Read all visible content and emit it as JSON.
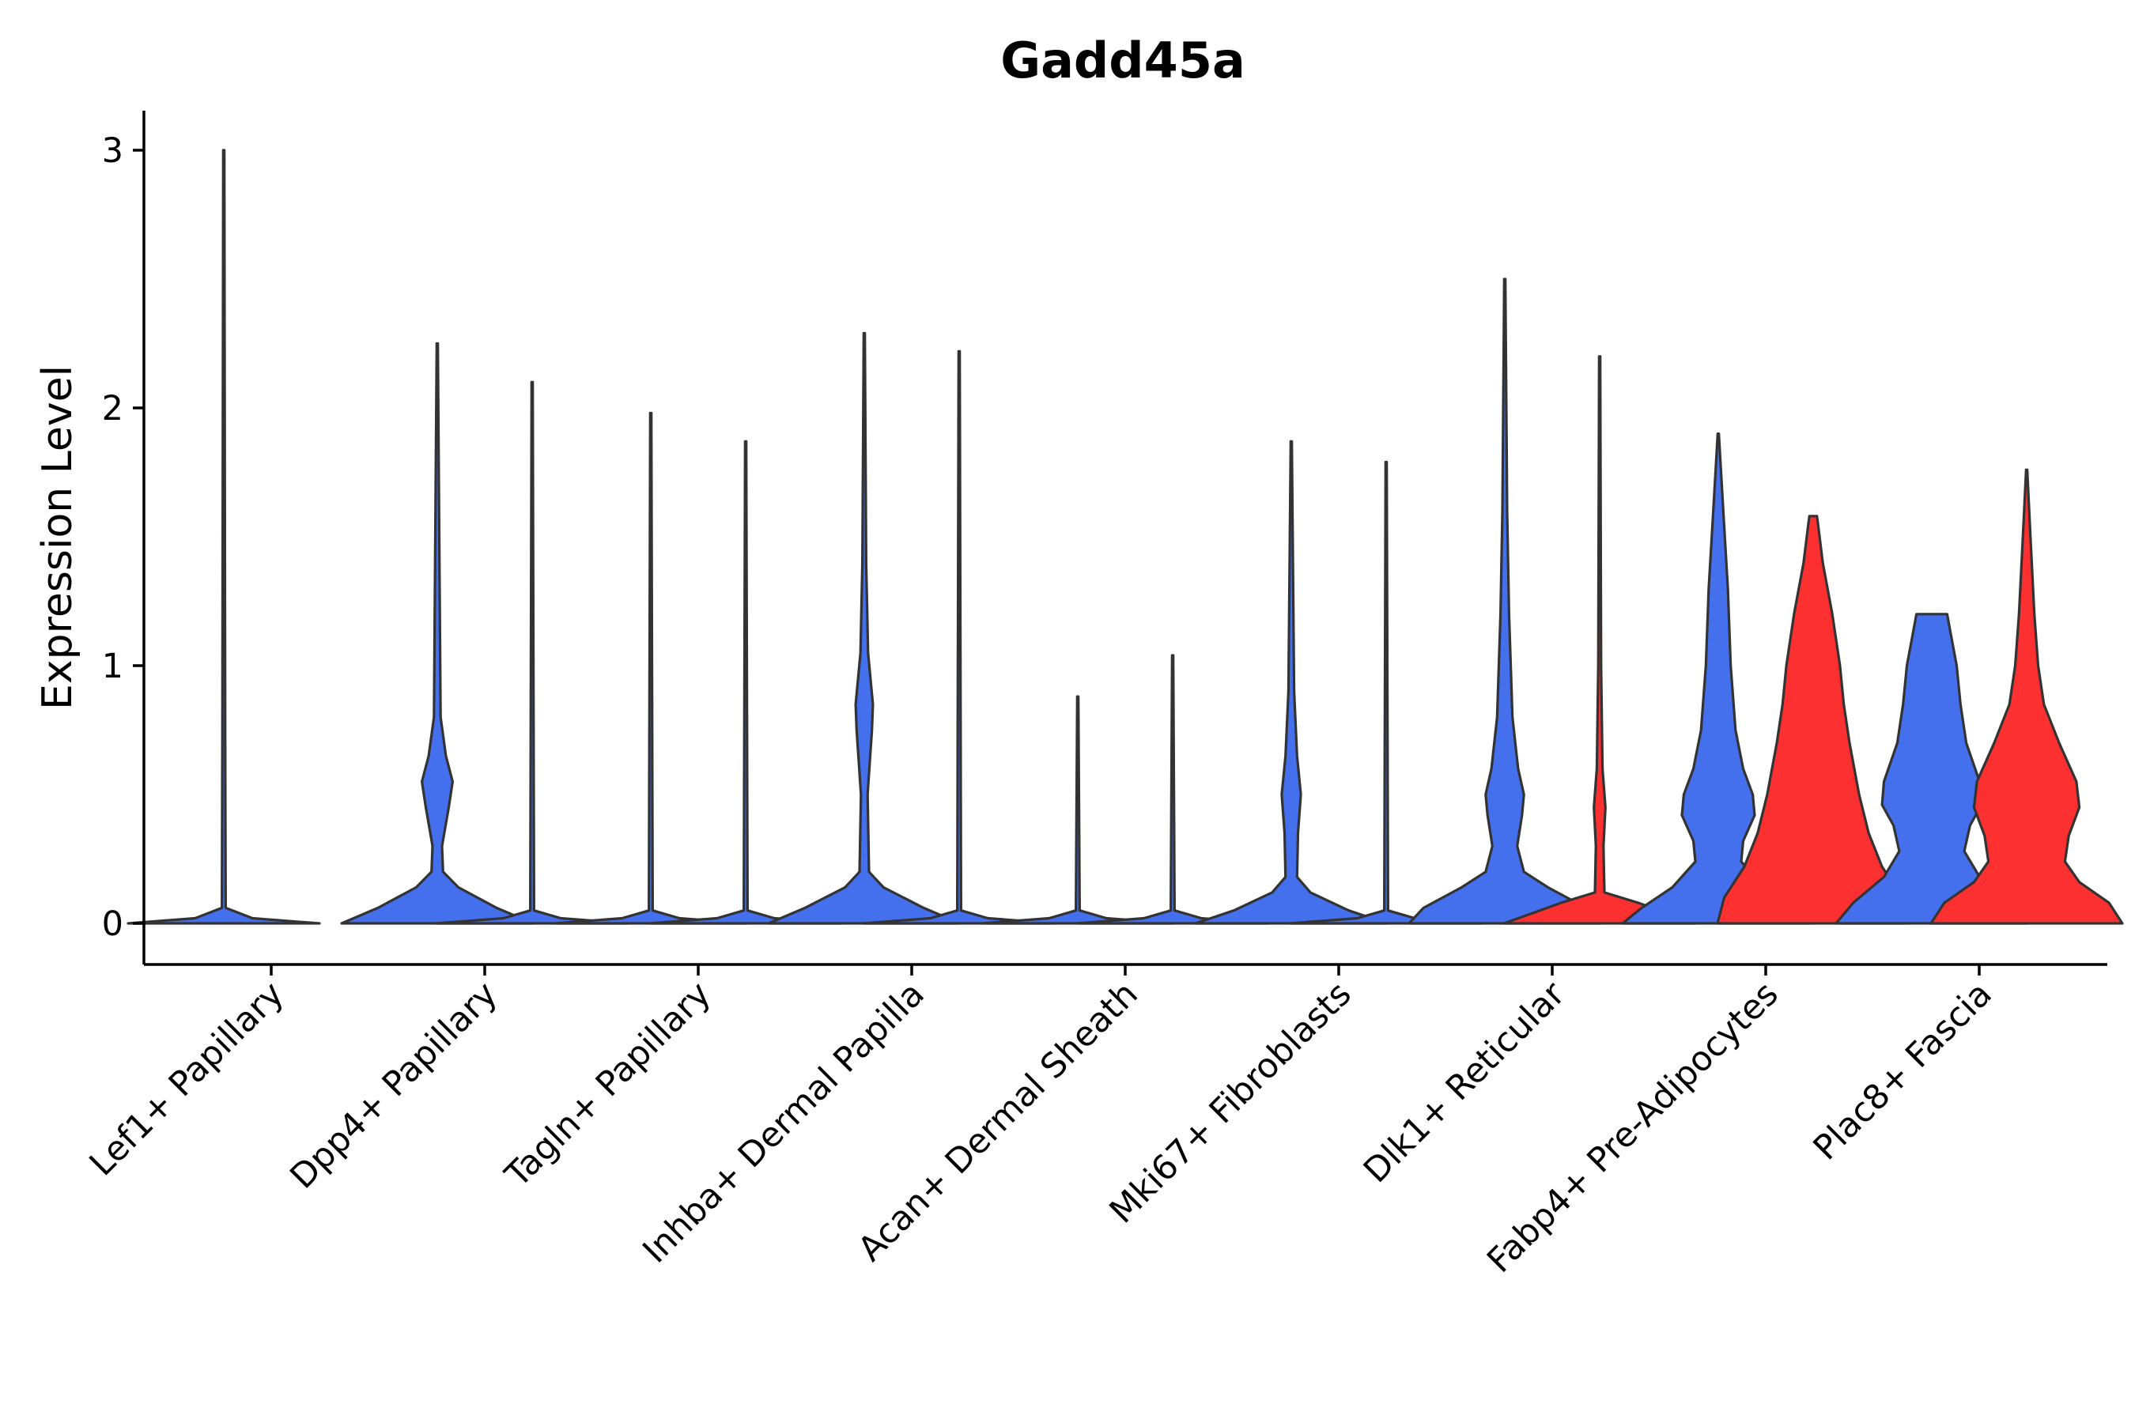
{
  "chart_data": {
    "type": "violin",
    "title": "Gadd45a",
    "xlabel": "",
    "ylabel": "Expression Level",
    "ylim": [
      -0.15,
      3.15
    ],
    "yticks": [
      0,
      1,
      2,
      3
    ],
    "grid": false,
    "legend": "none",
    "colors": {
      "blue": "#4570ED",
      "red": "#FC3030",
      "outline": "#333333"
    },
    "categories": [
      "Lef1+ Papillary",
      "Dpp4+ Papillary",
      "Tagln+ Papillary",
      "Inhba+ Dermal Papilla",
      "Acan+ Dermal Sheath",
      "Mki67+ Fibroblasts",
      "Dlk1+ Reticular",
      "Fabp4+ Pre-Adipocytes",
      "Plac8+ Fascia"
    ],
    "violins": [
      {
        "category": "Lef1+ Papillary",
        "group": 1,
        "fill": "blue",
        "max": 3.0,
        "density": [
          [
            0,
            1.0
          ],
          [
            0.02,
            0.3
          ],
          [
            0.06,
            0.02
          ],
          [
            0.7,
            0.015
          ],
          [
            3.0,
            0.006
          ]
        ]
      },
      {
        "category": "Lef1+ Papillary",
        "group": 2,
        "fill": "none",
        "max": 0.0,
        "density": [
          [
            0,
            0.0
          ]
        ]
      },
      {
        "category": "Dpp4+ Papillary",
        "group": 1,
        "fill": "blue",
        "max": 2.25,
        "density": [
          [
            0,
            1.0
          ],
          [
            0.06,
            0.62
          ],
          [
            0.14,
            0.22
          ],
          [
            0.2,
            0.06
          ],
          [
            0.3,
            0.05
          ],
          [
            0.45,
            0.12
          ],
          [
            0.55,
            0.16
          ],
          [
            0.65,
            0.09
          ],
          [
            0.8,
            0.035
          ],
          [
            1.3,
            0.025
          ],
          [
            2.25,
            0.006
          ]
        ]
      },
      {
        "category": "Dpp4+ Papillary",
        "group": 2,
        "fill": "blue",
        "max": 2.1,
        "density": [
          [
            0,
            1.0
          ],
          [
            0.02,
            0.3
          ],
          [
            0.05,
            0.02
          ],
          [
            2.1,
            0.006
          ]
        ]
      },
      {
        "category": "Tagln+ Papillary",
        "group": 1,
        "fill": "blue",
        "max": 1.98,
        "density": [
          [
            0,
            1.0
          ],
          [
            0.02,
            0.3
          ],
          [
            0.05,
            0.02
          ],
          [
            1.98,
            0.006
          ]
        ]
      },
      {
        "category": "Tagln+ Papillary",
        "group": 2,
        "fill": "blue",
        "max": 1.87,
        "density": [
          [
            0,
            1.0
          ],
          [
            0.02,
            0.3
          ],
          [
            0.05,
            0.02
          ],
          [
            1.87,
            0.006
          ]
        ]
      },
      {
        "category": "Inhba+ Dermal Papilla",
        "group": 1,
        "fill": "blue",
        "max": 2.29,
        "density": [
          [
            0,
            1.0
          ],
          [
            0.06,
            0.62
          ],
          [
            0.14,
            0.2
          ],
          [
            0.2,
            0.05
          ],
          [
            0.5,
            0.035
          ],
          [
            0.75,
            0.08
          ],
          [
            0.85,
            0.09
          ],
          [
            1.05,
            0.04
          ],
          [
            1.4,
            0.02
          ],
          [
            2.29,
            0.006
          ]
        ]
      },
      {
        "category": "Inhba+ Dermal Papilla",
        "group": 2,
        "fill": "blue",
        "max": 2.22,
        "density": [
          [
            0,
            1.0
          ],
          [
            0.02,
            0.3
          ],
          [
            0.05,
            0.02
          ],
          [
            2.22,
            0.006
          ]
        ]
      },
      {
        "category": "Acan+ Dermal Sheath",
        "group": 1,
        "fill": "blue",
        "max": 0.88,
        "density": [
          [
            0,
            1.0
          ],
          [
            0.02,
            0.3
          ],
          [
            0.05,
            0.02
          ],
          [
            0.88,
            0.006
          ]
        ]
      },
      {
        "category": "Acan+ Dermal Sheath",
        "group": 2,
        "fill": "blue",
        "max": 1.04,
        "density": [
          [
            0,
            1.0
          ],
          [
            0.02,
            0.3
          ],
          [
            0.05,
            0.02
          ],
          [
            1.04,
            0.006
          ]
        ]
      },
      {
        "category": "Mki67+ Fibroblasts",
        "group": 1,
        "fill": "blue",
        "max": 1.87,
        "density": [
          [
            0,
            1.0
          ],
          [
            0.05,
            0.6
          ],
          [
            0.12,
            0.2
          ],
          [
            0.18,
            0.06
          ],
          [
            0.35,
            0.07
          ],
          [
            0.5,
            0.1
          ],
          [
            0.65,
            0.06
          ],
          [
            0.9,
            0.03
          ],
          [
            1.3,
            0.02
          ],
          [
            1.87,
            0.006
          ]
        ]
      },
      {
        "category": "Mki67+ Fibroblasts",
        "group": 2,
        "fill": "blue",
        "max": 1.79,
        "density": [
          [
            0,
            1.0
          ],
          [
            0.02,
            0.3
          ],
          [
            0.05,
            0.02
          ],
          [
            1.79,
            0.006
          ]
        ]
      },
      {
        "category": "Dlk1+ Reticular",
        "group": 1,
        "fill": "blue",
        "max": 2.5,
        "density": [
          [
            0,
            1.0
          ],
          [
            0.06,
            0.85
          ],
          [
            0.14,
            0.45
          ],
          [
            0.2,
            0.2
          ],
          [
            0.3,
            0.13
          ],
          [
            0.42,
            0.18
          ],
          [
            0.5,
            0.2
          ],
          [
            0.6,
            0.14
          ],
          [
            0.8,
            0.08
          ],
          [
            1.2,
            0.045
          ],
          [
            1.6,
            0.025
          ],
          [
            2.5,
            0.006
          ]
        ]
      },
      {
        "category": "Dlk1+ Reticular",
        "group": 2,
        "fill": "red",
        "max": 2.2,
        "density": [
          [
            0,
            1.0
          ],
          [
            0.04,
            0.7
          ],
          [
            0.08,
            0.4
          ],
          [
            0.12,
            0.05
          ],
          [
            0.3,
            0.04
          ],
          [
            0.45,
            0.06
          ],
          [
            0.6,
            0.03
          ],
          [
            1.0,
            0.015
          ],
          [
            2.2,
            0.006
          ]
        ]
      },
      {
        "category": "Fabp4+ Pre-Adipocytes",
        "group": 1,
        "fill": "blue",
        "max": 1.9,
        "density": [
          [
            0,
            1.0
          ],
          [
            0.06,
            0.8
          ],
          [
            0.14,
            0.48
          ],
          [
            0.24,
            0.24
          ],
          [
            0.32,
            0.26
          ],
          [
            0.42,
            0.38
          ],
          [
            0.5,
            0.36
          ],
          [
            0.6,
            0.26
          ],
          [
            0.75,
            0.18
          ],
          [
            1.0,
            0.13
          ],
          [
            1.3,
            0.1
          ],
          [
            1.55,
            0.06
          ],
          [
            1.9,
            0.006
          ]
        ]
      },
      {
        "category": "Fabp4+ Pre-Adipocytes",
        "group": 2,
        "fill": "red",
        "max": 1.58,
        "density": [
          [
            0,
            1.0
          ],
          [
            0.1,
            0.93
          ],
          [
            0.22,
            0.72
          ],
          [
            0.35,
            0.58
          ],
          [
            0.5,
            0.48
          ],
          [
            0.7,
            0.38
          ],
          [
            0.85,
            0.32
          ],
          [
            1.0,
            0.28
          ],
          [
            1.2,
            0.2
          ],
          [
            1.4,
            0.1
          ],
          [
            1.55,
            0.05
          ],
          [
            1.58,
            0.04
          ]
        ]
      },
      {
        "category": "Plac8+ Fascia",
        "group": 1,
        "fill": "blue",
        "max": 1.2,
        "density": [
          [
            0,
            1.0
          ],
          [
            0.08,
            0.82
          ],
          [
            0.18,
            0.5
          ],
          [
            0.28,
            0.34
          ],
          [
            0.38,
            0.4
          ],
          [
            0.46,
            0.52
          ],
          [
            0.55,
            0.5
          ],
          [
            0.7,
            0.36
          ],
          [
            0.85,
            0.3
          ],
          [
            1.0,
            0.26
          ],
          [
            1.12,
            0.2
          ],
          [
            1.2,
            0.16
          ]
        ]
      },
      {
        "category": "Plac8+ Fascia",
        "group": 2,
        "fill": "red",
        "max": 1.76,
        "density": [
          [
            0,
            1.0
          ],
          [
            0.08,
            0.86
          ],
          [
            0.16,
            0.55
          ],
          [
            0.24,
            0.4
          ],
          [
            0.34,
            0.44
          ],
          [
            0.45,
            0.55
          ],
          [
            0.55,
            0.52
          ],
          [
            0.7,
            0.34
          ],
          [
            0.85,
            0.18
          ],
          [
            1.0,
            0.12
          ],
          [
            1.2,
            0.08
          ],
          [
            1.5,
            0.04
          ],
          [
            1.76,
            0.006
          ]
        ]
      }
    ]
  }
}
